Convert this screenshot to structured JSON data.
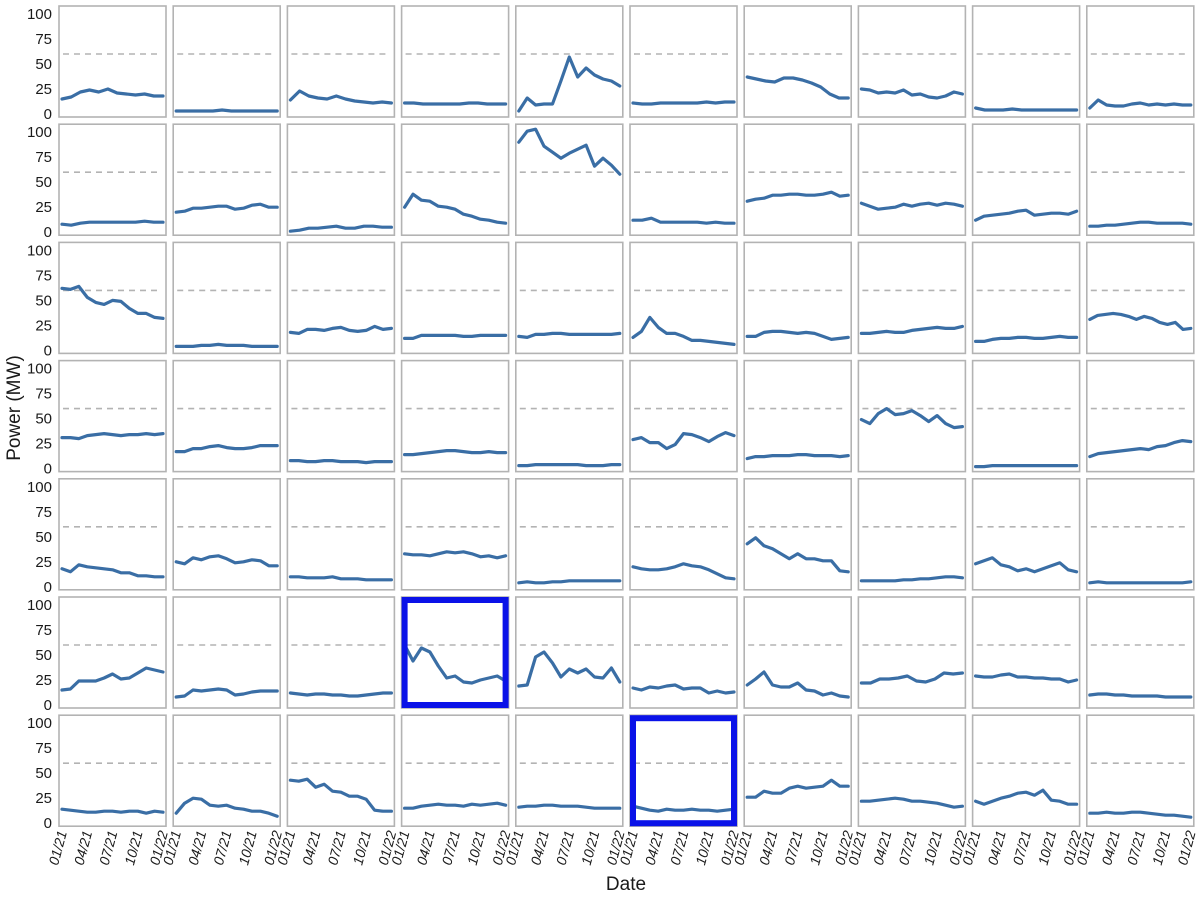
{
  "chart_data": {
    "type": "line",
    "title": "",
    "xlabel": "Date",
    "ylabel": "Power (MW)",
    "ylim": [
      0,
      105
    ],
    "y_ticks": [
      "0",
      "25",
      "50",
      "75",
      "100"
    ],
    "y_tick_values": [
      0,
      25,
      50,
      75,
      100
    ],
    "x_ticks": [
      "01/21",
      "04/21",
      "07/21",
      "10/21",
      "01/22"
    ],
    "x_tick_values": [
      0,
      3,
      6,
      9,
      12
    ],
    "threshold": 60,
    "grid_rows": 7,
    "grid_cols": 10,
    "line_color": "#3a6ea5",
    "threshold_color": "#b3b3b3",
    "frame_color": "#b3b3b3",
    "highlight_color": "#0a12e8",
    "highlighted_panels": [
      [
        5,
        3
      ],
      [
        6,
        5
      ]
    ],
    "panels": [
      [
        15,
        17,
        22,
        24,
        22,
        25,
        21,
        20,
        19,
        20,
        18,
        18
      ],
      [
        3,
        3,
        3,
        3,
        3,
        4,
        3,
        3,
        3,
        3,
        3,
        3
      ],
      [
        14,
        23,
        18,
        16,
        15,
        18,
        15,
        13,
        12,
        11,
        12,
        11
      ],
      [
        11,
        11,
        10,
        10,
        10,
        10,
        10,
        11,
        11,
        10,
        10,
        10
      ],
      [
        3,
        16,
        9,
        10,
        10,
        33,
        57,
        37,
        46,
        39,
        35,
        33,
        28
      ],
      [
        11,
        10,
        10,
        11,
        11,
        11,
        11,
        11,
        12,
        11,
        12,
        12
      ],
      [
        37,
        35,
        33,
        32,
        36,
        36,
        34,
        31,
        27,
        20,
        16,
        16
      ],
      [
        25,
        24,
        21,
        22,
        21,
        24,
        19,
        20,
        17,
        16,
        18,
        22,
        20
      ],
      [
        6,
        4,
        4,
        4,
        5,
        4,
        4,
        4,
        4,
        4,
        4,
        4
      ],
      [
        6,
        14,
        9,
        8,
        8,
        10,
        11,
        9,
        10,
        9,
        10,
        9,
        9
      ],
      [
        8,
        7,
        9,
        10,
        10,
        10,
        10,
        10,
        10,
        11,
        10,
        10
      ],
      [
        20,
        21,
        24,
        24,
        25,
        26,
        26,
        23,
        24,
        27,
        28,
        25,
        25
      ],
      [
        1,
        2,
        4,
        4,
        5,
        6,
        4,
        4,
        6,
        6,
        5,
        5
      ],
      [
        25,
        38,
        32,
        31,
        26,
        25,
        23,
        18,
        16,
        13,
        12,
        10,
        9
      ],
      [
        90,
        101,
        103,
        86,
        80,
        74,
        79,
        83,
        87,
        66,
        74,
        67,
        58
      ],
      [
        12,
        12,
        14,
        10,
        10,
        10,
        10,
        10,
        9,
        10,
        9,
        9
      ],
      [
        31,
        33,
        34,
        37,
        37,
        38,
        38,
        37,
        37,
        38,
        40,
        36,
        37
      ],
      [
        29,
        26,
        23,
        24,
        25,
        28,
        26,
        28,
        29,
        27,
        29,
        28,
        26
      ],
      [
        12,
        16,
        17,
        18,
        19,
        21,
        22,
        17,
        18,
        19,
        19,
        18,
        21
      ],
      [
        6,
        6,
        7,
        7,
        8,
        9,
        10,
        10,
        9,
        9,
        9,
        9,
        8
      ],
      [
        62,
        61,
        64,
        53,
        48,
        46,
        50,
        49,
        42,
        37,
        37,
        33,
        32
      ],
      [
        4,
        4,
        4,
        5,
        5,
        6,
        5,
        5,
        5,
        4,
        4,
        4,
        4
      ],
      [
        18,
        17,
        21,
        21,
        20,
        22,
        23,
        20,
        19,
        20,
        24,
        21,
        22
      ],
      [
        12,
        12,
        15,
        15,
        15,
        15,
        15,
        14,
        14,
        15,
        15,
        15,
        15
      ],
      [
        14,
        13,
        16,
        16,
        17,
        17,
        16,
        16,
        16,
        16,
        16,
        16,
        17
      ],
      [
        13,
        19,
        33,
        23,
        17,
        17,
        14,
        10,
        10,
        9,
        8,
        7,
        6
      ],
      [
        14,
        14,
        18,
        19,
        19,
        18,
        17,
        18,
        17,
        14,
        11,
        12,
        13
      ],
      [
        17,
        17,
        18,
        19,
        18,
        18,
        20,
        21,
        22,
        23,
        22,
        22,
        24
      ],
      [
        9,
        9,
        11,
        12,
        12,
        13,
        13,
        12,
        12,
        13,
        14,
        13,
        13
      ],
      [
        31,
        35,
        36,
        37,
        36,
        34,
        31,
        34,
        32,
        28,
        26,
        28,
        21,
        22
      ],
      [
        31,
        31,
        30,
        33,
        34,
        35,
        34,
        33,
        34,
        34,
        35,
        34,
        35
      ],
      [
        17,
        17,
        20,
        20,
        22,
        23,
        21,
        20,
        20,
        21,
        23,
        23,
        23
      ],
      [
        8,
        8,
        7,
        7,
        8,
        8,
        7,
        7,
        7,
        6,
        7,
        7,
        7
      ],
      [
        14,
        14,
        15,
        16,
        17,
        18,
        18,
        17,
        16,
        16,
        17,
        16,
        16
      ],
      [
        3,
        3,
        4,
        4,
        4,
        4,
        4,
        4,
        3,
        3,
        3,
        4,
        4
      ],
      [
        29,
        31,
        26,
        26,
        20,
        24,
        35,
        34,
        31,
        27,
        32,
        36,
        33
      ],
      [
        10,
        12,
        12,
        13,
        13,
        13,
        14,
        14,
        13,
        13,
        13,
        12,
        13
      ],
      [
        49,
        45,
        55,
        60,
        54,
        55,
        58,
        53,
        47,
        53,
        45,
        41,
        42
      ],
      [
        2,
        2,
        3,
        3,
        3,
        3,
        3,
        3,
        3,
        3,
        3,
        3,
        3
      ],
      [
        12,
        15,
        16,
        17,
        18,
        19,
        20,
        19,
        22,
        23,
        26,
        28,
        27
      ],
      [
        18,
        15,
        22,
        20,
        19,
        18,
        17,
        14,
        14,
        11,
        11,
        10,
        10
      ],
      [
        25,
        23,
        29,
        27,
        30,
        31,
        28,
        24,
        25,
        27,
        26,
        21,
        21
      ],
      [
        10,
        10,
        9,
        9,
        9,
        10,
        8,
        8,
        8,
        7,
        7,
        7,
        7
      ],
      [
        33,
        32,
        32,
        31,
        33,
        35,
        34,
        35,
        33,
        30,
        31,
        29,
        31
      ],
      [
        4,
        5,
        4,
        4,
        5,
        5,
        6,
        6,
        6,
        6,
        6,
        6,
        6
      ],
      [
        20,
        18,
        17,
        17,
        18,
        20,
        23,
        21,
        20,
        17,
        13,
        9,
        8
      ],
      [
        43,
        49,
        41,
        38,
        33,
        28,
        33,
        28,
        28,
        26,
        26,
        16,
        15
      ],
      [
        6,
        6,
        6,
        6,
        6,
        7,
        7,
        8,
        8,
        9,
        10,
        10,
        9
      ],
      [
        23,
        26,
        29,
        22,
        20,
        16,
        18,
        15,
        18,
        21,
        24,
        17,
        15
      ],
      [
        4,
        5,
        4,
        4,
        4,
        4,
        4,
        4,
        4,
        4,
        4,
        4,
        5
      ],
      [
        15,
        16,
        24,
        24,
        24,
        27,
        31,
        26,
        27,
        32,
        37,
        35,
        33
      ],
      [
        8,
        9,
        15,
        14,
        15,
        16,
        15,
        10,
        11,
        13,
        14,
        14,
        14
      ],
      [
        12,
        11,
        10,
        11,
        11,
        10,
        10,
        9,
        9,
        10,
        11,
        12,
        12
      ],
      [
        60,
        44,
        57,
        53,
        39,
        27,
        29,
        23,
        22,
        25,
        27,
        29,
        24
      ],
      [
        19,
        20,
        48,
        53,
        42,
        28,
        36,
        32,
        36,
        28,
        27,
        37,
        23
      ],
      [
        17,
        15,
        18,
        17,
        19,
        20,
        16,
        17,
        17,
        12,
        14,
        12,
        13
      ],
      [
        20,
        26,
        33,
        20,
        18,
        18,
        22,
        15,
        14,
        10,
        12,
        9,
        8
      ],
      [
        22,
        22,
        26,
        26,
        27,
        29,
        24,
        23,
        26,
        32,
        31,
        32
      ],
      [
        29,
        28,
        28,
        30,
        31,
        28,
        28,
        27,
        27,
        26,
        26,
        23,
        25
      ],
      [
        10,
        11,
        11,
        10,
        10,
        9,
        9,
        9,
        9,
        8,
        8,
        8,
        8
      ],
      [
        14,
        13,
        12,
        11,
        11,
        12,
        12,
        11,
        12,
        12,
        10,
        12,
        11
      ],
      [
        10,
        20,
        25,
        24,
        18,
        17,
        18,
        15,
        14,
        12,
        12,
        10,
        7
      ],
      [
        43,
        42,
        44,
        36,
        39,
        32,
        31,
        27,
        27,
        24,
        13,
        12,
        12
      ],
      [
        15,
        15,
        17,
        18,
        19,
        18,
        18,
        17,
        19,
        18,
        19,
        20,
        18
      ],
      [
        16,
        17,
        17,
        18,
        18,
        17,
        17,
        17,
        16,
        15,
        15,
        15,
        15
      ],
      [
        17,
        15,
        13,
        12,
        14,
        13,
        13,
        14,
        13,
        13,
        12,
        13,
        14
      ],
      [
        26,
        26,
        32,
        30,
        30,
        35,
        37,
        35,
        36,
        37,
        43,
        37,
        37
      ],
      [
        22,
        22,
        23,
        24,
        25,
        24,
        22,
        22,
        21,
        20,
        18,
        16,
        17
      ],
      [
        22,
        19,
        22,
        25,
        27,
        30,
        31,
        28,
        33,
        23,
        22,
        19,
        19
      ],
      [
        10,
        10,
        11,
        10,
        10,
        11,
        11,
        10,
        9,
        8,
        8,
        7,
        6
      ]
    ]
  }
}
